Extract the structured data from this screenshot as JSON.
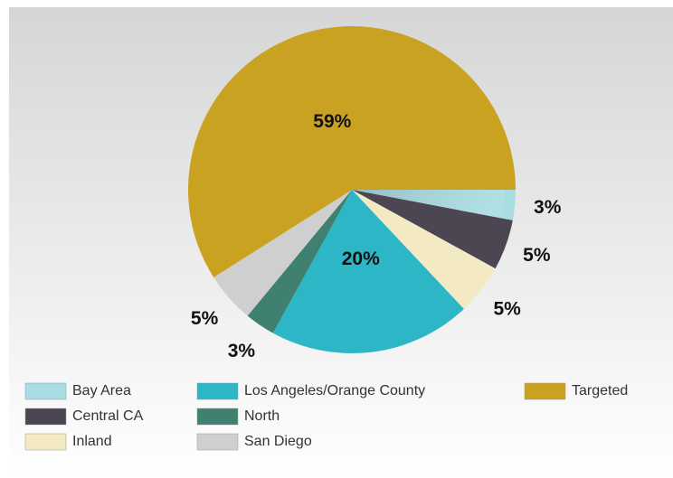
{
  "chart_data": {
    "type": "pie",
    "categories": [
      "Bay Area",
      "Central CA",
      "Inland",
      "Los Angeles/Orange County",
      "North",
      "San Diego",
      "Targeted"
    ],
    "values": [
      3,
      5,
      5,
      20,
      3,
      5,
      59
    ],
    "value_labels": [
      "3%",
      "5%",
      "5%",
      "20%",
      "3%",
      "5%",
      "59%"
    ],
    "colors": [
      "#a9dde4",
      "#4b4652",
      "#f3eac3",
      "#2db6c6",
      "#3f8070",
      "#cfcfcf",
      "#c9a221"
    ],
    "legend": "bottom"
  }
}
